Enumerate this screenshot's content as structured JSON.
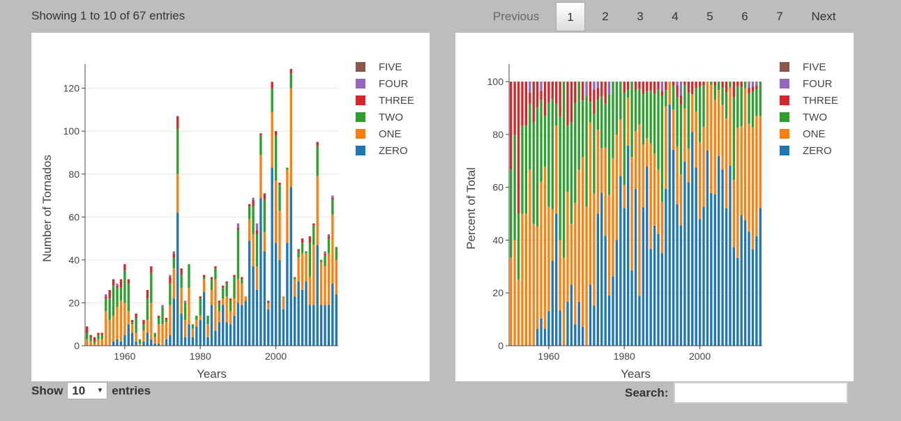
{
  "table_info": "Showing 1 to 10 of 67 entries",
  "pagination": {
    "previous": "Previous",
    "pages": [
      "1",
      "2",
      "3",
      "4",
      "5",
      "6",
      "7"
    ],
    "current": "1",
    "next": "Next"
  },
  "length_menu": {
    "show": "Show",
    "value": "10",
    "entries": "entries"
  },
  "search": {
    "label": "Search:",
    "value": ""
  },
  "colors": {
    "ZERO": "#1f77b4",
    "ONE": "#ff7f0e",
    "TWO": "#2ca02c",
    "THREE": "#d62728",
    "FOUR": "#9467bd",
    "FIVE": "#8c564b"
  },
  "chart_data": [
    {
      "type": "bar",
      "stacked": true,
      "xlabel": "Years",
      "ylabel": "Number of Tornados",
      "xlim": [
        1949.5,
        2016.5
      ],
      "ylim": [
        0,
        128
      ],
      "xticks": [
        1960,
        1980,
        2000
      ],
      "yticks": [
        0,
        20,
        40,
        60,
        80,
        100,
        120
      ],
      "legend_position": "top-right",
      "x": [
        1950,
        1951,
        1952,
        1953,
        1954,
        1955,
        1956,
        1957,
        1958,
        1959,
        1960,
        1961,
        1962,
        1963,
        1964,
        1965,
        1966,
        1967,
        1968,
        1969,
        1970,
        1971,
        1972,
        1973,
        1974,
        1975,
        1976,
        1977,
        1978,
        1979,
        1980,
        1981,
        1982,
        1983,
        1984,
        1985,
        1986,
        1987,
        1988,
        1989,
        1990,
        1991,
        1992,
        1993,
        1994,
        1995,
        1996,
        1997,
        1998,
        1999,
        2000,
        2001,
        2002,
        2003,
        2004,
        2005,
        2006,
        2007,
        2008,
        2009,
        2010,
        2011,
        2012,
        2013,
        2014,
        2015,
        2016
      ],
      "series": [
        {
          "name": "ZERO",
          "values": [
            0,
            0,
            0,
            0,
            0,
            0,
            0,
            2,
            3,
            2,
            5,
            10,
            6,
            2,
            0,
            2,
            6,
            3,
            1,
            1,
            0,
            3,
            5,
            22,
            62,
            15,
            4,
            10,
            4,
            9,
            12,
            25,
            4,
            19,
            7,
            11,
            19,
            11,
            10,
            14,
            20,
            19,
            21,
            49,
            37,
            26,
            69,
            44,
            17,
            83,
            48,
            40,
            17,
            48,
            74,
            23,
            30,
            26,
            30,
            19,
            19,
            47,
            19,
            19,
            19,
            29,
            24
          ]
        },
        {
          "name": "ONE",
          "values": [
            3,
            2,
            1,
            3,
            3,
            16,
            12,
            12,
            15,
            19,
            15,
            6,
            4,
            4,
            1,
            5,
            6,
            17,
            3,
            9,
            10,
            8,
            14,
            14,
            18,
            12,
            8,
            17,
            4,
            3,
            2,
            6,
            6,
            7,
            24,
            5,
            3,
            12,
            6,
            8,
            11,
            10,
            2,
            10,
            15,
            11,
            20,
            9,
            3,
            26,
            29,
            23,
            6,
            34,
            46,
            8,
            11,
            17,
            13,
            13,
            28,
            32,
            20,
            18,
            24,
            32,
            16
          ]
        },
        {
          "name": "TWO",
          "values": [
            3,
            2,
            1,
            2,
            2,
            6,
            10,
            14,
            9,
            6,
            15,
            13,
            1,
            7,
            2,
            3,
            10,
            14,
            2,
            3,
            8,
            1,
            10,
            5,
            21,
            6,
            8,
            11,
            2,
            2,
            8,
            1,
            4,
            5,
            5,
            4,
            5,
            6,
            5,
            10,
            23,
            2,
            0,
            6,
            13,
            15,
            9,
            15,
            0,
            11,
            21,
            12,
            0,
            1,
            7,
            1,
            3,
            5,
            1,
            16,
            9,
            14,
            1,
            5,
            7,
            7,
            6
          ]
        },
        {
          "name": "THREE",
          "values": [
            3,
            1,
            2,
            1,
            1,
            1,
            4,
            3,
            1,
            4,
            3,
            2,
            1,
            2,
            0,
            2,
            4,
            3,
            0,
            1,
            0,
            1,
            3,
            2,
            6,
            3,
            0,
            0,
            0,
            0,
            1,
            1,
            0,
            1,
            1,
            1,
            1,
            1,
            1,
            1,
            1,
            1,
            0,
            1,
            3,
            2,
            1,
            3,
            1,
            3,
            2,
            1,
            0,
            0,
            2,
            0,
            1,
            2,
            0,
            3,
            1,
            2,
            0,
            1,
            1,
            1,
            0
          ]
        },
        {
          "name": "FOUR",
          "values": [
            0,
            0,
            0,
            0,
            0,
            1,
            0,
            0,
            1,
            0,
            0,
            0,
            0,
            0,
            0,
            0,
            0,
            0,
            0,
            0,
            1,
            0,
            1,
            1,
            0,
            0,
            1,
            0,
            0,
            0,
            0,
            0,
            0,
            0,
            0,
            0,
            0,
            0,
            0,
            0,
            2,
            0,
            0,
            0,
            1,
            3,
            0,
            0,
            0,
            0,
            0,
            0,
            0,
            0,
            0,
            0,
            0,
            0,
            0,
            0,
            0,
            0,
            0,
            1,
            1,
            1,
            0
          ]
        },
        {
          "name": "FIVE",
          "values": [
            0,
            0,
            0,
            0,
            0,
            0,
            0,
            0,
            0,
            0,
            0,
            0,
            0,
            0,
            0,
            0,
            0,
            0,
            0,
            0,
            0,
            0,
            0,
            0,
            0,
            0,
            0,
            0,
            0,
            0,
            0,
            0,
            0,
            0,
            0,
            0,
            0,
            0,
            0,
            0,
            0,
            0,
            0,
            0,
            0,
            0,
            0,
            0,
            0,
            0,
            0,
            0,
            0,
            0,
            0,
            0,
            0,
            0,
            0,
            0,
            0,
            0,
            0,
            0,
            0,
            0,
            0
          ]
        }
      ]
    },
    {
      "type": "bar",
      "stacked": true,
      "xlabel": "Years",
      "ylabel": "Percent of Total",
      "xlim": [
        1949.5,
        2016.5
      ],
      "ylim": [
        0,
        104
      ],
      "xticks": [
        1960,
        1980,
        2000
      ],
      "yticks": [
        0,
        20,
        40,
        60,
        80,
        100
      ],
      "legend_position": "top-right",
      "values_source": "percentage of each year's total from the count chart"
    }
  ]
}
